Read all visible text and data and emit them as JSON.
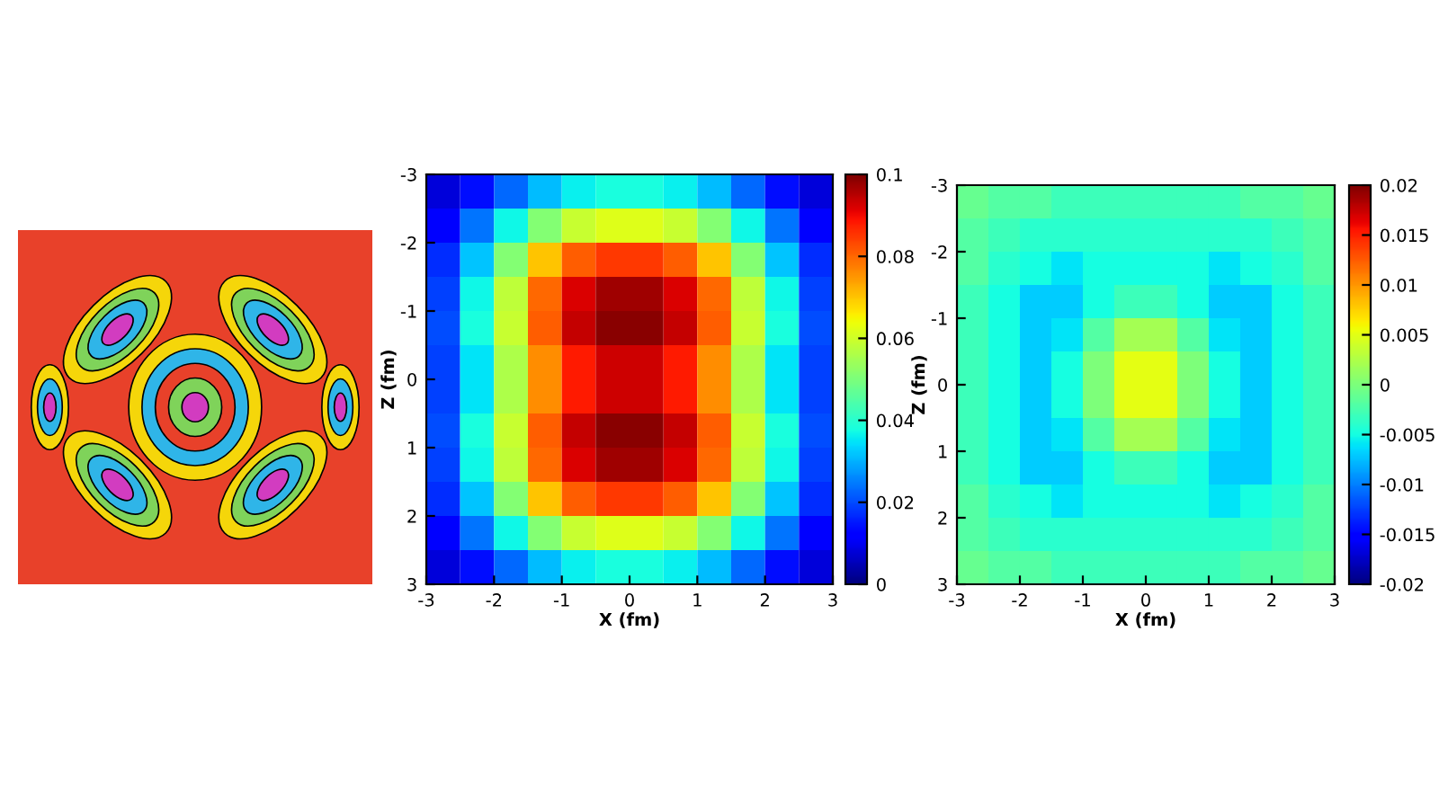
{
  "chart_data": [
    {
      "type": "heatmap",
      "xlabel": "X (fm)",
      "ylabel": "Z (fm)",
      "xlim": [
        -3,
        3
      ],
      "ylim": [
        3,
        -3
      ],
      "xticks": [
        -3,
        -2,
        -1,
        0,
        1,
        2,
        3
      ],
      "yticks": [
        -3,
        -2,
        -1,
        0,
        1,
        2,
        3
      ],
      "clim": [
        0,
        0.1
      ],
      "cticks": [
        0,
        0.02,
        0.04,
        0.06,
        0.08,
        0.1
      ],
      "cells": [
        [
          0.008,
          0.014,
          0.023,
          0.031,
          0.036,
          0.038,
          0.038,
          0.036,
          0.031,
          0.023,
          0.014,
          0.008
        ],
        [
          0.012,
          0.024,
          0.037,
          0.051,
          0.059,
          0.062,
          0.062,
          0.059,
          0.051,
          0.037,
          0.024,
          0.012
        ],
        [
          0.017,
          0.032,
          0.051,
          0.07,
          0.081,
          0.085,
          0.085,
          0.081,
          0.07,
          0.051,
          0.032,
          0.017
        ],
        [
          0.019,
          0.037,
          0.058,
          0.08,
          0.092,
          0.097,
          0.097,
          0.092,
          0.08,
          0.058,
          0.037,
          0.019
        ],
        [
          0.02,
          0.038,
          0.059,
          0.081,
          0.094,
          0.099,
          0.099,
          0.094,
          0.081,
          0.059,
          0.038,
          0.02
        ],
        [
          0.019,
          0.035,
          0.056,
          0.076,
          0.088,
          0.093,
          0.093,
          0.088,
          0.076,
          0.056,
          0.035,
          0.019
        ],
        [
          0.019,
          0.035,
          0.056,
          0.076,
          0.088,
          0.093,
          0.093,
          0.088,
          0.076,
          0.056,
          0.035,
          0.019
        ],
        [
          0.02,
          0.038,
          0.059,
          0.081,
          0.094,
          0.099,
          0.099,
          0.094,
          0.081,
          0.059,
          0.038,
          0.02
        ],
        [
          0.019,
          0.037,
          0.058,
          0.08,
          0.092,
          0.097,
          0.097,
          0.092,
          0.08,
          0.058,
          0.037,
          0.019
        ],
        [
          0.017,
          0.032,
          0.051,
          0.07,
          0.081,
          0.085,
          0.085,
          0.081,
          0.07,
          0.051,
          0.032,
          0.017
        ],
        [
          0.012,
          0.024,
          0.037,
          0.051,
          0.059,
          0.062,
          0.062,
          0.059,
          0.051,
          0.037,
          0.024,
          0.012
        ],
        [
          0.008,
          0.014,
          0.023,
          0.031,
          0.036,
          0.038,
          0.038,
          0.036,
          0.031,
          0.023,
          0.014,
          0.008
        ]
      ]
    },
    {
      "type": "heatmap",
      "xlabel": "X (fm)",
      "ylabel": "Z (fm)",
      "xlim": [
        -3,
        3
      ],
      "ylim": [
        3,
        -3
      ],
      "xticks": [
        -3,
        -2,
        -1,
        0,
        1,
        2,
        3
      ],
      "yticks": [
        -3,
        -2,
        -1,
        0,
        1,
        2,
        3
      ],
      "clim": [
        -0.02,
        0.02
      ],
      "cticks": [
        -0.02,
        -0.015,
        -0.01,
        -0.005,
        0,
        0.005,
        0.01,
        0.015,
        0.02
      ],
      "cells": [
        [
          -0.001,
          -0.002,
          -0.002,
          -0.003,
          -0.003,
          -0.003,
          -0.003,
          -0.003,
          -0.003,
          -0.002,
          -0.002,
          -0.001
        ],
        [
          -0.002,
          -0.003,
          -0.004,
          -0.004,
          -0.004,
          -0.004,
          -0.004,
          -0.004,
          -0.004,
          -0.004,
          -0.003,
          -0.002
        ],
        [
          -0.002,
          -0.004,
          -0.005,
          -0.006,
          -0.005,
          -0.005,
          -0.005,
          -0.005,
          -0.006,
          -0.005,
          -0.004,
          -0.002
        ],
        [
          -0.003,
          -0.005,
          -0.007,
          -0.007,
          -0.005,
          -0.003,
          -0.003,
          -0.005,
          -0.007,
          -0.007,
          -0.005,
          -0.003
        ],
        [
          -0.003,
          -0.005,
          -0.007,
          -0.006,
          -0.002,
          0.002,
          0.002,
          -0.002,
          -0.006,
          -0.007,
          -0.005,
          -0.003
        ],
        [
          -0.003,
          -0.005,
          -0.007,
          -0.005,
          0.0,
          0.005,
          0.005,
          0.0,
          -0.005,
          -0.007,
          -0.005,
          -0.003
        ],
        [
          -0.003,
          -0.005,
          -0.007,
          -0.005,
          0.0,
          0.005,
          0.005,
          0.0,
          -0.005,
          -0.007,
          -0.005,
          -0.003
        ],
        [
          -0.003,
          -0.005,
          -0.007,
          -0.006,
          -0.002,
          0.002,
          0.002,
          -0.002,
          -0.006,
          -0.007,
          -0.005,
          -0.003
        ],
        [
          -0.003,
          -0.005,
          -0.007,
          -0.007,
          -0.005,
          -0.003,
          -0.003,
          -0.005,
          -0.007,
          -0.007,
          -0.005,
          -0.003
        ],
        [
          -0.002,
          -0.004,
          -0.005,
          -0.006,
          -0.005,
          -0.005,
          -0.005,
          -0.005,
          -0.006,
          -0.005,
          -0.004,
          -0.002
        ],
        [
          -0.002,
          -0.003,
          -0.004,
          -0.004,
          -0.004,
          -0.004,
          -0.004,
          -0.004,
          -0.004,
          -0.004,
          -0.003,
          -0.002
        ],
        [
          -0.001,
          -0.002,
          -0.002,
          -0.003,
          -0.003,
          -0.003,
          -0.003,
          -0.003,
          -0.003,
          -0.002,
          -0.002,
          -0.001
        ]
      ]
    }
  ]
}
